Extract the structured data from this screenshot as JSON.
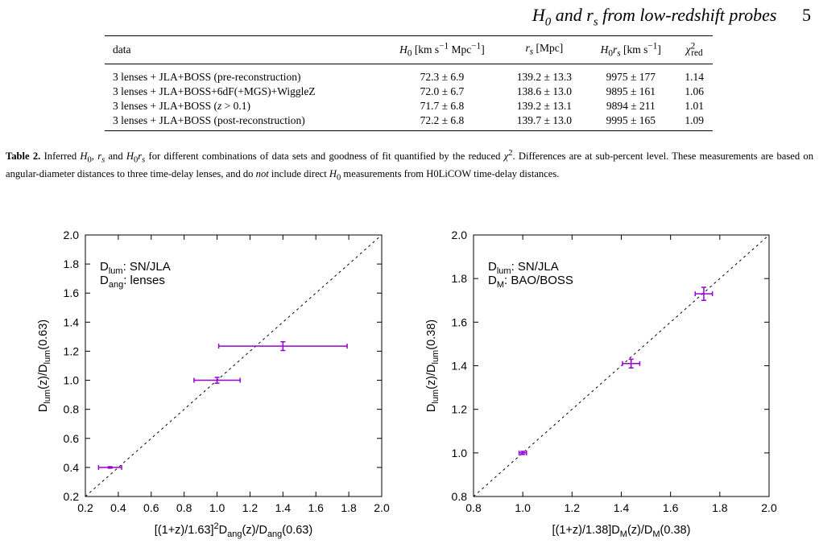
{
  "running_head": {
    "title": "H0 and rs from low-redshift probes",
    "page": "5"
  },
  "table": {
    "headers": [
      "data",
      "H0 [km s−1 Mpc−1]",
      "rs [Mpc]",
      "H0rs [km s−1]",
      "χ2red"
    ],
    "rows": [
      {
        "label": "3 lenses + JLA+BOSS (pre-reconstruction)",
        "h0": "72.3 ± 6.9",
        "rs": "139.2 ± 13.3",
        "h0rs": "9975 ± 177",
        "chi2": "1.14"
      },
      {
        "label": "3 lenses + JLA+BOSS+6dF(+MGS)+WiggleZ",
        "h0": "72.0 ± 6.7",
        "rs": "138.6 ± 13.0",
        "h0rs": "9895 ± 161",
        "chi2": "1.06"
      },
      {
        "label": "3 lenses + JLA+BOSS (z > 0.1)",
        "h0": "71.7 ± 6.8",
        "rs": "139.2 ± 13.1",
        "h0rs": "9894 ± 211",
        "chi2": "1.01"
      },
      {
        "label": "3 lenses + JLA+BOSS (post-reconstruction)",
        "h0": "72.2 ± 6.8",
        "rs": "139.7 ± 13.0",
        "h0rs": "9995 ± 165",
        "chi2": "1.09"
      }
    ]
  },
  "caption": {
    "label": "Table 2.",
    "text": "Inferred H0, rs and H0rs for different combinations of data sets and goodness of fit quantified by the reduced χ2. Differences are at sub-percent level. These measurements are based on angular-diameter distances to three time-delay lenses, and do not include direct H0 measurements from H0LiCOW time-delay distances."
  },
  "colors": {
    "points": "#9400d3",
    "line": "#000000"
  },
  "chart_data": [
    {
      "type": "scatter",
      "xlabel": "[(1+z)/1.63]2Dang(z)/Dang(0.63)",
      "ylabel": "Dlum(z)/Dlum(0.63)",
      "legend": [
        "Dlum: SN/JLA",
        "Dang: lenses"
      ],
      "legend_placement": "top-left",
      "xlim": [
        0.2,
        2.0
      ],
      "ylim": [
        0.2,
        2.0
      ],
      "xticks": [
        0.2,
        0.4,
        0.6,
        0.8,
        1.0,
        1.2,
        1.4,
        1.6,
        1.8,
        2.0
      ],
      "yticks": [
        0.2,
        0.4,
        0.6,
        0.8,
        1.0,
        1.2,
        1.4,
        1.6,
        1.8,
        2.0
      ],
      "reference_line": "y = x, dashed",
      "points": [
        {
          "x": 0.35,
          "y": 0.4,
          "xerr": 0.07,
          "yerr": 0.005
        },
        {
          "x": 1.0,
          "y": 1.0,
          "xerr": 0.14,
          "yerr": 0.02
        },
        {
          "x": 1.4,
          "y": 1.235,
          "xerr": 0.39,
          "yerr": 0.03
        }
      ]
    },
    {
      "type": "scatter",
      "xlabel": "[(1+z)/1.38]DM(z)/DM(0.38)",
      "ylabel": "Dlum(z)/Dlum(0.38)",
      "legend": [
        "Dlum: SN/JLA",
        "DM: BAO/BOSS"
      ],
      "legend_placement": "top-left",
      "xlim": [
        0.8,
        2.0
      ],
      "ylim": [
        0.8,
        2.0
      ],
      "xticks": [
        0.8,
        1.0,
        1.2,
        1.4,
        1.6,
        1.8,
        2.0
      ],
      "yticks": [
        0.8,
        1.0,
        1.2,
        1.4,
        1.6,
        1.8,
        2.0
      ],
      "reference_line": "y = x, dashed",
      "points": [
        {
          "x": 1.0,
          "y": 1.0,
          "xerr": 0.015,
          "yerr": 0.007
        },
        {
          "x": 1.44,
          "y": 1.41,
          "xerr": 0.035,
          "yerr": 0.02
        },
        {
          "x": 1.735,
          "y": 1.73,
          "xerr": 0.035,
          "yerr": 0.03
        }
      ]
    }
  ]
}
